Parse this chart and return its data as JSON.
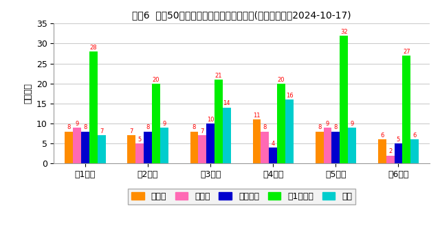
{
  "title": "ロト6  直近50回の数字パターンの出現回数(最終抽選日：2024-10-17)",
  "ylabel": "出現回数",
  "categories": [
    "第1数字",
    "第2数字",
    "第3数字",
    "第4数字",
    "第5数字",
    "第6数字"
  ],
  "legend_labels": [
    "前数字",
    "後数字",
    "継続数字",
    "下1桁数字",
    "連番"
  ],
  "bar_colors": [
    "#FF8C00",
    "#FF69B4",
    "#0000CD",
    "#00EE00",
    "#00CDCD"
  ],
  "data": {
    "前数字": [
      8,
      7,
      8,
      11,
      8,
      6
    ],
    "後数字": [
      9,
      5,
      7,
      8,
      9,
      2
    ],
    "継続数字": [
      8,
      8,
      10,
      4,
      8,
      5
    ],
    "下1桁数字": [
      28,
      20,
      21,
      20,
      32,
      27
    ],
    "連番": [
      7,
      9,
      14,
      16,
      9,
      6
    ]
  },
  "ylim": [
    0,
    35
  ],
  "yticks": [
    0,
    5,
    10,
    15,
    20,
    25,
    30,
    35
  ],
  "background_color": "#FFFFFF",
  "grid_color": "#CCCCCC",
  "annotation_color": "red",
  "title_fontsize": 10,
  "axis_label_fontsize": 9,
  "tick_fontsize": 9,
  "legend_fontsize": 9,
  "bar_width": 0.13
}
